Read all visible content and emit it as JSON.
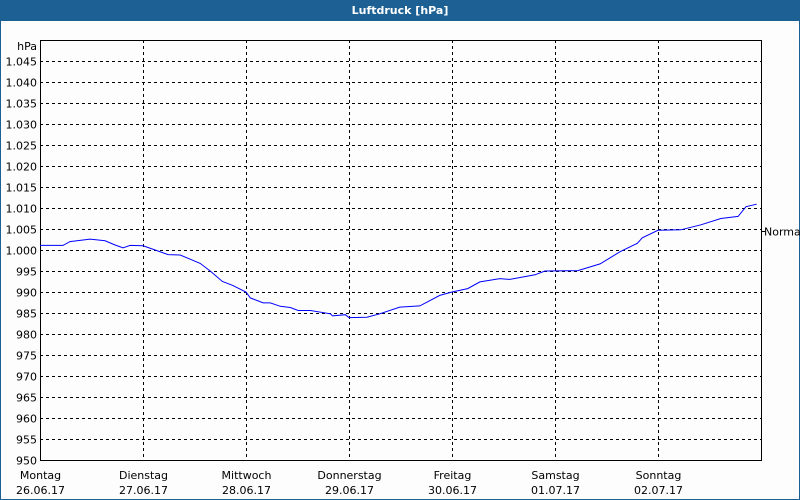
{
  "window": {
    "title": "Luftdruck [hPa]"
  },
  "chart_data": {
    "type": "line",
    "title": "Luftdruck [hPa]",
    "ylabel": "hPa",
    "ylim": [
      950,
      1050
    ],
    "yticks": [
      950,
      955,
      960,
      965,
      970,
      975,
      980,
      985,
      990,
      995,
      1000,
      1005,
      1010,
      1015,
      1020,
      1025,
      1030,
      1035,
      1040,
      1045
    ],
    "ytick_labels": [
      "950",
      "955",
      "960",
      "965",
      "970",
      "975",
      "980",
      "985",
      "990",
      "995",
      "1.000",
      "1.005",
      "1.010",
      "1.015",
      "1.020",
      "1.025",
      "1.030",
      "1.035",
      "1.040",
      "1.045"
    ],
    "x_categories": [
      {
        "day": "Montag",
        "date": "26.06.17"
      },
      {
        "day": "Dienstag",
        "date": "27.06.17"
      },
      {
        "day": "Mittwoch",
        "date": "28.06.17"
      },
      {
        "day": "Donnerstag",
        "date": "29.06.17"
      },
      {
        "day": "Freitag",
        "date": "30.06.17"
      },
      {
        "day": "Samstag",
        "date": "01.07.17"
      },
      {
        "day": "Sonntag",
        "date": "02.07.17"
      }
    ],
    "grid": true,
    "reference": {
      "label": "Normal",
      "value": 1004.5
    },
    "line_color": "#0000ff",
    "series": [
      {
        "points": [
          [
            "26.06.17 00:00",
            1001.1
          ],
          [
            "26.06.17 05:22",
            1001.1
          ],
          [
            "26.06.17 07:00",
            1002.0
          ],
          [
            "26.06.17 11:40",
            1002.6
          ],
          [
            "26.06.17 15:10",
            1002.2
          ],
          [
            "26.06.17 17:30",
            1001.2
          ],
          [
            "26.06.17 19:20",
            1000.5
          ],
          [
            "26.06.17 21:00",
            1001.1
          ],
          [
            "27.06.17 00:00",
            1001.0
          ],
          [
            "27.06.17 02:50",
            1000.0
          ],
          [
            "27.06.17 05:50",
            998.9
          ],
          [
            "27.06.17 08:40",
            998.8
          ],
          [
            "27.06.17 11:00",
            997.8
          ],
          [
            "27.06.17 13:20",
            996.8
          ],
          [
            "27.06.17 15:40",
            995.0
          ],
          [
            "27.06.17 18:30",
            992.5
          ],
          [
            "27.06.17 20:50",
            991.6
          ],
          [
            "28.06.17 00:00",
            990.0
          ],
          [
            "28.06.17 01:00",
            988.6
          ],
          [
            "28.06.17 04:00",
            987.4
          ],
          [
            "28.06.17 05:40",
            987.4
          ],
          [
            "28.06.17 08:00",
            986.6
          ],
          [
            "28.06.17 10:20",
            986.3
          ],
          [
            "28.06.17 12:10",
            985.6
          ],
          [
            "28.06.17 15:00",
            985.6
          ],
          [
            "28.06.17 19:40",
            984.8
          ],
          [
            "28.06.17 20:10",
            984.3
          ],
          [
            "28.06.17 23:10",
            984.6
          ],
          [
            "29.06.17 00:00",
            983.9
          ],
          [
            "29.06.17 04:10",
            984.0
          ],
          [
            "29.06.17 07:10",
            984.8
          ],
          [
            "29.06.17 11:50",
            986.4
          ],
          [
            "29.06.17 16:30",
            986.7
          ],
          [
            "29.06.17 21:10",
            989.2
          ],
          [
            "30.06.17 00:00",
            990.0
          ],
          [
            "30.06.17 03:40",
            990.8
          ],
          [
            "30.06.17 06:30",
            992.4
          ],
          [
            "30.06.17 11:10",
            993.2
          ],
          [
            "30.06.17 13:30",
            993.0
          ],
          [
            "30.06.17 19:20",
            994.1
          ],
          [
            "30.06.17 21:40",
            995.0
          ],
          [
            "01.07.17 05:20",
            995.1
          ],
          [
            "01.07.17 10:30",
            996.7
          ],
          [
            "01.07.17 15:10",
            999.6
          ],
          [
            "01.07.17 19:10",
            1001.6
          ],
          [
            "01.07.17 20:20",
            1002.9
          ],
          [
            "02.07.17 00:00",
            1004.7
          ],
          [
            "02.07.17 05:20",
            1004.8
          ],
          [
            "02.07.17 10:00",
            1006.0
          ],
          [
            "02.07.17 14:40",
            1007.5
          ],
          [
            "02.07.17 18:40",
            1008.0
          ],
          [
            "02.07.17 20:30",
            1010.3
          ],
          [
            "02.07.17 23:00",
            1010.9
          ]
        ]
      }
    ]
  }
}
